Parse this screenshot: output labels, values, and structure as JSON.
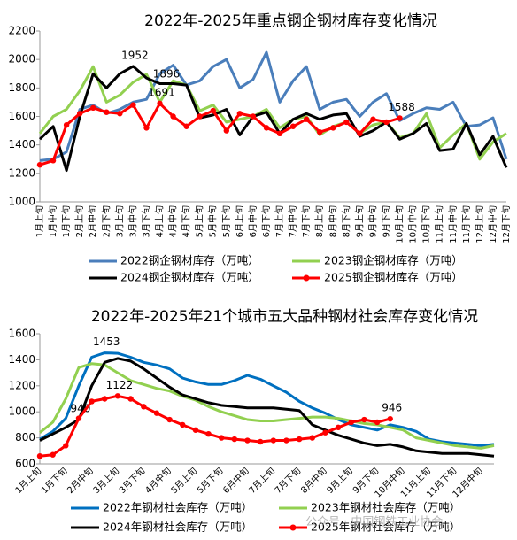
{
  "chart_data": [
    {
      "type": "line",
      "title": "2022年-2025年重点钢企钢材库存变化情况",
      "categories": [
        "1月上旬",
        "1月中旬",
        "1月下旬",
        "2月上旬",
        "2月中旬",
        "2月下旬",
        "3月上旬",
        "3月中旬",
        "3月下旬",
        "4月上旬",
        "4月中旬",
        "4月下旬",
        "5月上旬",
        "5月中旬",
        "5月下旬",
        "6月上旬",
        "6月中旬",
        "6月下旬",
        "7月上旬",
        "7月中旬",
        "7月下旬",
        "8月上旬",
        "8月中旬",
        "8月下旬",
        "9月上旬",
        "9月中旬",
        "9月下旬",
        "10月上旬",
        "10月中旬",
        "10月下旬",
        "11月上旬",
        "11月中旬",
        "11月下旬",
        "12月上旬",
        "12月中旬",
        "12月下旬"
      ],
      "ylim": [
        1000,
        2200
      ],
      "yticks": [
        1000,
        1200,
        1400,
        1600,
        1800,
        2000,
        2200
      ],
      "series": [
        {
          "name": "2022钢企钢材库存（万吨）",
          "color": "#4a7ebb",
          "values": [
            1290,
            1300,
            1350,
            1650,
            1680,
            1620,
            1650,
            1700,
            1720,
            1900,
            1960,
            1820,
            1850,
            1950,
            2000,
            1800,
            1860,
            2050,
            1700,
            1850,
            1950,
            1650,
            1700,
            1720,
            1600,
            1700,
            1760,
            1570,
            1620,
            1660,
            1650,
            1700,
            1530,
            1540,
            1590,
            1300
          ]
        },
        {
          "name": "2023钢企钢材库存（万吨）",
          "color": "#92d050",
          "values": [
            1480,
            1600,
            1650,
            1780,
            1950,
            1700,
            1750,
            1840,
            1896,
            1700,
            1850,
            1820,
            1640,
            1680,
            1560,
            1580,
            1600,
            1650,
            1520,
            1580,
            1600,
            1470,
            1530,
            1560,
            1480,
            1540,
            1560,
            1450,
            1480,
            1620,
            1380,
            1470,
            1550,
            1300,
            1420,
            1480
          ]
        },
        {
          "name": "2024钢企钢材库存（万吨）",
          "color": "#000000",
          "values": [
            1440,
            1530,
            1220,
            1600,
            1900,
            1800,
            1900,
            1952,
            1870,
            1830,
            1830,
            1820,
            1590,
            1610,
            1650,
            1470,
            1600,
            1630,
            1480,
            1580,
            1620,
            1580,
            1610,
            1620,
            1460,
            1500,
            1560,
            1440,
            1480,
            1550,
            1360,
            1370,
            1550,
            1330,
            1460,
            1240
          ],
          "value_labels": [
            null,
            null,
            null,
            null,
            null,
            null,
            null,
            "1952",
            null,
            null,
            null,
            null,
            null,
            null,
            null,
            null,
            null,
            null,
            null,
            null,
            null,
            null,
            null,
            null,
            null,
            null,
            null,
            null,
            null,
            null,
            null,
            null,
            null,
            null,
            null,
            null
          ]
        },
        {
          "name": "2025钢企钢材库存（万吨）",
          "color": "#ff0000",
          "markers": true,
          "values": [
            1260,
            1290,
            1540,
            1620,
            1660,
            1630,
            1620,
            1680,
            1520,
            1691,
            1600,
            1530,
            1600,
            1640,
            1500,
            1620,
            1600,
            1520,
            1480,
            1530,
            1580,
            1490,
            1520,
            1560,
            1480,
            1580,
            1560,
            1588,
            null,
            null,
            null,
            null,
            null,
            null,
            null,
            null
          ],
          "value_labels": [
            null,
            null,
            null,
            null,
            null,
            null,
            null,
            null,
            null,
            "1691",
            null,
            null,
            null,
            null,
            null,
            null,
            null,
            null,
            null,
            null,
            null,
            null,
            null,
            null,
            null,
            null,
            null,
            "1588",
            null,
            null,
            null,
            null,
            null,
            null,
            null,
            null
          ]
        }
      ],
      "annotations": [
        "1896"
      ]
    },
    {
      "type": "line",
      "title": "2022年-2025年21个城市五大品种钢材社会库存变化情况",
      "categories": [
        "1月上旬",
        null,
        "1月下旬",
        null,
        "2月中旬",
        null,
        "3月上旬",
        null,
        "3月下旬",
        null,
        "4月中旬",
        null,
        "5月上旬",
        null,
        "5月下旬",
        null,
        "6月中旬",
        null,
        "7月上旬",
        null,
        "7月下旬",
        null,
        "8月中旬",
        null,
        "9月上旬",
        null,
        "9月下旬",
        null,
        "10月中旬",
        null,
        "11月上旬",
        null,
        "11月下旬",
        null,
        "12月中旬",
        null
      ],
      "ylim": [
        600,
        1600
      ],
      "yticks": [
        600,
        800,
        1000,
        1200,
        1400,
        1600
      ],
      "series": [
        {
          "name": "2022年钢材社会库存（万吨）",
          "color": "#0070c0",
          "values": [
            790,
            850,
            950,
            1200,
            1420,
            1453,
            1450,
            1420,
            1380,
            1360,
            1330,
            1260,
            1230,
            1210,
            1210,
            1240,
            1280,
            1250,
            1200,
            1150,
            1080,
            1030,
            990,
            940,
            900,
            880,
            860,
            900,
            880,
            850,
            790,
            770,
            760,
            750,
            740,
            750
          ],
          "value_labels": [
            null,
            null,
            null,
            null,
            null,
            "1453",
            null,
            null,
            null,
            null,
            null,
            null,
            null,
            null,
            null,
            null,
            null,
            null,
            null,
            null,
            null,
            null,
            null,
            null,
            null,
            null,
            null,
            null,
            null,
            null,
            null,
            null,
            null,
            null,
            null,
            null
          ]
        },
        {
          "name": "2023年钢材社会库存（万吨）",
          "color": "#92d050",
          "values": [
            840,
            920,
            1100,
            1340,
            1370,
            1360,
            1300,
            1240,
            1210,
            1180,
            1160,
            1120,
            1090,
            1040,
            1000,
            970,
            940,
            930,
            930,
            940,
            950,
            960,
            960,
            950,
            930,
            910,
            900,
            880,
            860,
            800,
            780,
            760,
            740,
            730,
            720,
            740
          ]
        },
        {
          "name": "2024年钢材社会库存（万吨）",
          "color": "#000000",
          "values": [
            780,
            830,
            880,
            940,
            1200,
            1380,
            1410,
            1390,
            1330,
            1260,
            1190,
            1130,
            1100,
            1070,
            1050,
            1040,
            1030,
            1030,
            1030,
            1020,
            1010,
            900,
            860,
            820,
            790,
            760,
            740,
            750,
            730,
            700,
            690,
            680,
            680,
            680,
            670,
            660
          ],
          "value_labels": [
            null,
            null,
            null,
            "940",
            null,
            null,
            null,
            null,
            null,
            null,
            null,
            null,
            null,
            null,
            null,
            null,
            null,
            null,
            null,
            null,
            null,
            null,
            null,
            null,
            null,
            null,
            null,
            null,
            null,
            null,
            null,
            null,
            null,
            null,
            null,
            null
          ]
        },
        {
          "name": "2025年钢材社会库存（万吨）",
          "color": "#ff0000",
          "markers": true,
          "values": [
            660,
            670,
            740,
            950,
            1080,
            1100,
            1122,
            1100,
            1040,
            990,
            940,
            900,
            860,
            830,
            800,
            790,
            780,
            770,
            780,
            780,
            790,
            800,
            840,
            880,
            920,
            940,
            920,
            946,
            null,
            null,
            null,
            null,
            null,
            null,
            null,
            null
          ],
          "value_labels": [
            null,
            null,
            null,
            null,
            null,
            null,
            "1122",
            null,
            null,
            null,
            null,
            null,
            null,
            null,
            null,
            null,
            null,
            null,
            null,
            null,
            null,
            null,
            null,
            null,
            null,
            null,
            null,
            "946",
            null,
            null,
            null,
            null,
            null,
            null,
            null,
            null
          ]
        }
      ],
      "watermark": "公众号 · 中国钢铁工业协会"
    }
  ]
}
